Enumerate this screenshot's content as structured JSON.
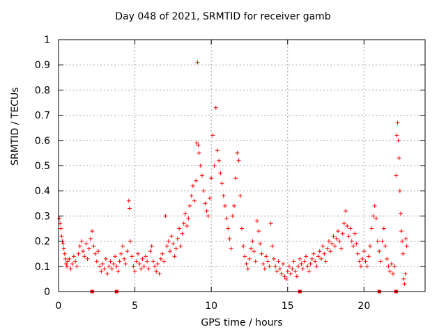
{
  "chart_data": {
    "type": "scatter",
    "title": "Day 048 of 2021, SRMTID for receiver gamb",
    "xlabel": "GPS time / hours",
    "ylabel": "SRMTID / TECUs",
    "xlim": [
      0,
      24
    ],
    "ylim": [
      0,
      1
    ],
    "xticks": [
      "0",
      "5",
      "10",
      "15",
      "20"
    ],
    "xtick_values": [
      0,
      5,
      10,
      15,
      20
    ],
    "yticks": [
      "0",
      "0.1",
      "0.2",
      "0.3",
      "0.4",
      "0.5",
      "0.6",
      "0.7",
      "0.8",
      "0.9",
      "1"
    ],
    "ytick_values": [
      0,
      0.1,
      0.2,
      0.3,
      0.4,
      0.5,
      0.6,
      0.7,
      0.8,
      0.9,
      1
    ],
    "grid": true,
    "marker": "+",
    "color": "#ff0000",
    "axis_markers_x": [
      2.2,
      3.8,
      15.8,
      21.0,
      22.1
    ],
    "series": [
      {
        "name": "SRMTID",
        "points": [
          [
            0.05,
            0.29
          ],
          [
            0.1,
            0.27
          ],
          [
            0.15,
            0.25
          ],
          [
            0.2,
            0.22
          ],
          [
            0.25,
            0.2
          ],
          [
            0.3,
            0.19
          ],
          [
            0.35,
            0.17
          ],
          [
            0.4,
            0.15
          ],
          [
            0.45,
            0.13
          ],
          [
            0.5,
            0.11
          ],
          [
            0.55,
            0.1
          ],
          [
            0.6,
            0.12
          ],
          [
            0.7,
            0.13
          ],
          [
            0.8,
            0.09
          ],
          [
            0.9,
            0.11
          ],
          [
            1.0,
            0.14
          ],
          [
            1.1,
            0.12
          ],
          [
            1.2,
            0.1
          ],
          [
            1.3,
            0.15
          ],
          [
            1.4,
            0.18
          ],
          [
            1.5,
            0.2
          ],
          [
            1.6,
            0.16
          ],
          [
            1.7,
            0.14
          ],
          [
            1.8,
            0.19
          ],
          [
            1.9,
            0.13
          ],
          [
            2.0,
            0.17
          ],
          [
            2.1,
            0.21
          ],
          [
            2.2,
            0.24
          ],
          [
            2.3,
            0.18
          ],
          [
            2.4,
            0.15
          ],
          [
            2.5,
            0.12
          ],
          [
            2.6,
            0.16
          ],
          [
            2.7,
            0.1
          ],
          [
            2.8,
            0.08
          ],
          [
            2.9,
            0.11
          ],
          [
            3.0,
            0.09
          ],
          [
            3.1,
            0.13
          ],
          [
            3.2,
            0.07
          ],
          [
            3.3,
            0.1
          ],
          [
            3.4,
            0.12
          ],
          [
            3.5,
            0.09
          ],
          [
            3.6,
            0.11
          ],
          [
            3.7,
            0.14
          ],
          [
            3.8,
            0.1
          ],
          [
            3.9,
            0.08
          ],
          [
            4.0,
            0.12
          ],
          [
            4.1,
            0.15
          ],
          [
            4.2,
            0.18
          ],
          [
            4.3,
            0.13
          ],
          [
            4.4,
            0.11
          ],
          [
            4.5,
            0.16
          ],
          [
            4.6,
            0.36
          ],
          [
            4.65,
            0.33
          ],
          [
            4.7,
            0.2
          ],
          [
            4.8,
            0.14
          ],
          [
            4.9,
            0.1
          ],
          [
            5.0,
            0.08
          ],
          [
            5.1,
            0.12
          ],
          [
            5.2,
            0.15
          ],
          [
            5.3,
            0.11
          ],
          [
            5.4,
            0.09
          ],
          [
            5.5,
            0.13
          ],
          [
            5.6,
            0.1
          ],
          [
            5.7,
            0.14
          ],
          [
            5.8,
            0.12
          ],
          [
            5.9,
            0.09
          ],
          [
            6.0,
            0.16
          ],
          [
            6.1,
            0.18
          ],
          [
            6.2,
            0.12
          ],
          [
            6.3,
            0.1
          ],
          [
            6.4,
            0.08
          ],
          [
            6.5,
            0.11
          ],
          [
            6.6,
            0.07
          ],
          [
            6.7,
            0.13
          ],
          [
            6.8,
            0.15
          ],
          [
            6.9,
            0.12
          ],
          [
            7.0,
            0.3
          ],
          [
            7.1,
            0.18
          ],
          [
            7.2,
            0.2
          ],
          [
            7.3,
            0.16
          ],
          [
            7.4,
            0.22
          ],
          [
            7.5,
            0.19
          ],
          [
            7.6,
            0.14
          ],
          [
            7.7,
            0.17
          ],
          [
            7.8,
            0.21
          ],
          [
            7.9,
            0.25
          ],
          [
            8.0,
            0.18
          ],
          [
            8.1,
            0.23
          ],
          [
            8.2,
            0.27
          ],
          [
            8.3,
            0.31
          ],
          [
            8.4,
            0.26
          ],
          [
            8.5,
            0.29
          ],
          [
            8.6,
            0.34
          ],
          [
            8.7,
            0.38
          ],
          [
            8.8,
            0.42
          ],
          [
            8.9,
            0.36
          ],
          [
            9.0,
            0.44
          ],
          [
            9.05,
            0.59
          ],
          [
            9.1,
            0.91
          ],
          [
            9.15,
            0.58
          ],
          [
            9.2,
            0.55
          ],
          [
            9.3,
            0.5
          ],
          [
            9.4,
            0.46
          ],
          [
            9.5,
            0.4
          ],
          [
            9.6,
            0.35
          ],
          [
            9.7,
            0.32
          ],
          [
            9.8,
            0.3
          ],
          [
            9.9,
            0.37
          ],
          [
            10.0,
            0.45
          ],
          [
            10.1,
            0.62
          ],
          [
            10.2,
            0.5
          ],
          [
            10.3,
            0.73
          ],
          [
            10.4,
            0.56
          ],
          [
            10.5,
            0.52
          ],
          [
            10.6,
            0.47
          ],
          [
            10.7,
            0.43
          ],
          [
            10.8,
            0.38
          ],
          [
            10.9,
            0.34
          ],
          [
            11.0,
            0.29
          ],
          [
            11.1,
            0.25
          ],
          [
            11.2,
            0.21
          ],
          [
            11.3,
            0.17
          ],
          [
            11.4,
            0.3
          ],
          [
            11.5,
            0.34
          ],
          [
            11.6,
            0.45
          ],
          [
            11.7,
            0.55
          ],
          [
            11.8,
            0.52
          ],
          [
            11.9,
            0.38
          ],
          [
            12.0,
            0.25
          ],
          [
            12.1,
            0.18
          ],
          [
            12.2,
            0.14
          ],
          [
            12.3,
            0.11
          ],
          [
            12.4,
            0.09
          ],
          [
            12.5,
            0.13
          ],
          [
            12.6,
            0.17
          ],
          [
            12.7,
            0.2
          ],
          [
            12.8,
            0.16
          ],
          [
            12.9,
            0.12
          ],
          [
            13.0,
            0.28
          ],
          [
            13.1,
            0.24
          ],
          [
            13.2,
            0.19
          ],
          [
            13.3,
            0.15
          ],
          [
            13.4,
            0.11
          ],
          [
            13.5,
            0.09
          ],
          [
            13.6,
            0.14
          ],
          [
            13.7,
            0.12
          ],
          [
            13.8,
            0.1
          ],
          [
            13.9,
            0.27
          ],
          [
            14.0,
            0.18
          ],
          [
            14.1,
            0.13
          ],
          [
            14.2,
            0.1
          ],
          [
            14.3,
            0.08
          ],
          [
            14.4,
            0.12
          ],
          [
            14.5,
            0.09
          ],
          [
            14.6,
            0.07
          ],
          [
            14.7,
            0.11
          ],
          [
            14.8,
            0.06
          ],
          [
            14.9,
            0.05
          ],
          [
            15.0,
            0.08
          ],
          [
            15.1,
            0.1
          ],
          [
            15.2,
            0.07
          ],
          [
            15.3,
            0.09
          ],
          [
            15.4,
            0.12
          ],
          [
            15.5,
            0.08
          ],
          [
            15.6,
            0.06
          ],
          [
            15.7,
            0.1
          ],
          [
            15.8,
            0.13
          ],
          [
            15.9,
            0.11
          ],
          [
            16.0,
            0.09
          ],
          [
            16.1,
            0.12
          ],
          [
            16.2,
            0.14
          ],
          [
            16.3,
            0.1
          ],
          [
            16.4,
            0.08
          ],
          [
            16.5,
            0.11
          ],
          [
            16.6,
            0.13
          ],
          [
            16.7,
            0.15
          ],
          [
            16.8,
            0.12
          ],
          [
            16.9,
            0.1
          ],
          [
            17.0,
            0.14
          ],
          [
            17.1,
            0.16
          ],
          [
            17.2,
            0.13
          ],
          [
            17.3,
            0.18
          ],
          [
            17.4,
            0.15
          ],
          [
            17.5,
            0.12
          ],
          [
            17.6,
            0.17
          ],
          [
            17.7,
            0.2
          ],
          [
            17.8,
            0.16
          ],
          [
            17.9,
            0.19
          ],
          [
            18.0,
            0.22
          ],
          [
            18.1,
            0.18
          ],
          [
            18.2,
            0.21
          ],
          [
            18.3,
            0.24
          ],
          [
            18.4,
            0.2
          ],
          [
            18.5,
            0.17
          ],
          [
            18.6,
            0.23
          ],
          [
            18.7,
            0.27
          ],
          [
            18.8,
            0.32
          ],
          [
            18.9,
            0.26
          ],
          [
            19.0,
            0.22
          ],
          [
            19.1,
            0.25
          ],
          [
            19.2,
            0.2
          ],
          [
            19.3,
            0.18
          ],
          [
            19.4,
            0.23
          ],
          [
            19.5,
            0.19
          ],
          [
            19.6,
            0.15
          ],
          [
            19.7,
            0.12
          ],
          [
            19.8,
            0.1
          ],
          [
            19.9,
            0.13
          ],
          [
            20.0,
            0.16
          ],
          [
            20.1,
            0.12
          ],
          [
            20.2,
            0.1
          ],
          [
            20.3,
            0.14
          ],
          [
            20.4,
            0.18
          ],
          [
            20.5,
            0.25
          ],
          [
            20.6,
            0.3
          ],
          [
            20.7,
            0.34
          ],
          [
            20.8,
            0.29
          ],
          [
            20.9,
            0.2
          ],
          [
            21.0,
            0.16
          ],
          [
            21.1,
            0.12
          ],
          [
            21.2,
            0.2
          ],
          [
            21.3,
            0.25
          ],
          [
            21.4,
            0.18
          ],
          [
            21.5,
            0.13
          ],
          [
            21.6,
            0.1
          ],
          [
            21.7,
            0.08
          ],
          [
            21.8,
            0.11
          ],
          [
            21.9,
            0.07
          ],
          [
            22.0,
            0.1
          ],
          [
            22.1,
            0.46
          ],
          [
            22.15,
            0.62
          ],
          [
            22.2,
            0.67
          ],
          [
            22.25,
            0.6
          ],
          [
            22.3,
            0.53
          ],
          [
            22.35,
            0.4
          ],
          [
            22.4,
            0.31
          ],
          [
            22.45,
            0.24
          ],
          [
            22.5,
            0.2
          ],
          [
            22.55,
            0.15
          ],
          [
            22.6,
            0.05
          ],
          [
            22.65,
            0.03
          ],
          [
            22.7,
            0.07
          ],
          [
            22.75,
            0.21
          ],
          [
            22.8,
            0.18
          ]
        ]
      }
    ]
  }
}
